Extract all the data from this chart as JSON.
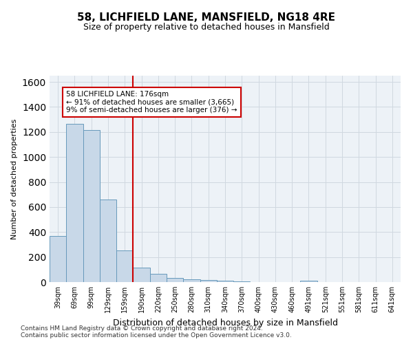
{
  "title1": "58, LICHFIELD LANE, MANSFIELD, NG18 4RE",
  "title2": "Size of property relative to detached houses in Mansfield",
  "xlabel": "Distribution of detached houses by size in Mansfield",
  "ylabel": "Number of detached properties",
  "categories": [
    "39sqm",
    "69sqm",
    "99sqm",
    "129sqm",
    "159sqm",
    "190sqm",
    "220sqm",
    "250sqm",
    "280sqm",
    "310sqm",
    "340sqm",
    "370sqm",
    "400sqm",
    "430sqm",
    "460sqm",
    "491sqm",
    "521sqm",
    "551sqm",
    "581sqm",
    "611sqm",
    "641sqm"
  ],
  "values": [
    370,
    1265,
    1215,
    660,
    255,
    115,
    65,
    35,
    20,
    15,
    10,
    5,
    0,
    0,
    0,
    10,
    0,
    0,
    0,
    0,
    0
  ],
  "bar_color": "#c8d8e8",
  "bar_edge_color": "#6699bb",
  "property_line_x": 4.5,
  "annotation_line1": "58 LICHFIELD LANE: 176sqm",
  "annotation_line2": "← 91% of detached houses are smaller (3,665)",
  "annotation_line3": "9% of semi-detached houses are larger (376) →",
  "annotation_box_color": "#ffffff",
  "annotation_box_edge": "#cc0000",
  "vline_color": "#cc0000",
  "grid_color": "#d0d8e0",
  "ylim": [
    0,
    1650
  ],
  "yticks": [
    0,
    200,
    400,
    600,
    800,
    1000,
    1200,
    1400,
    1600
  ],
  "footer1": "Contains HM Land Registry data © Crown copyright and database right 2024.",
  "footer2": "Contains public sector information licensed under the Open Government Licence v3.0.",
  "bg_color": "#edf2f7"
}
